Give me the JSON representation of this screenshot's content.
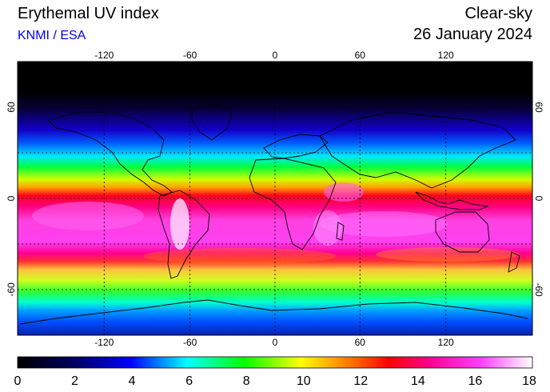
{
  "header": {
    "title": "Erythemal UV index",
    "source": "KNMI / ESA",
    "condition": "Clear-sky",
    "date": "26 January 2024"
  },
  "map": {
    "projection": "equirectangular",
    "lon_ticks": [
      -120,
      -60,
      0,
      60,
      120
    ],
    "lat_ticks": [
      60,
      0,
      -60
    ],
    "lon_tick_labels": [
      "-120",
      "-60",
      "0",
      "60",
      "120"
    ],
    "lat_tick_labels": [
      "60",
      "0",
      "-60"
    ],
    "gridlines": "dotted"
  },
  "colorbar": {
    "min": 0,
    "max": 18,
    "tick_labels": [
      "0",
      "2",
      "4",
      "6",
      "8",
      "10",
      "12",
      "14",
      "16",
      "18"
    ],
    "colors": [
      "#000000",
      "#0000ff",
      "#00ffff",
      "#00ff00",
      "#ffff00",
      "#ff0000",
      "#ff00ff",
      "#ffffff"
    ]
  }
}
